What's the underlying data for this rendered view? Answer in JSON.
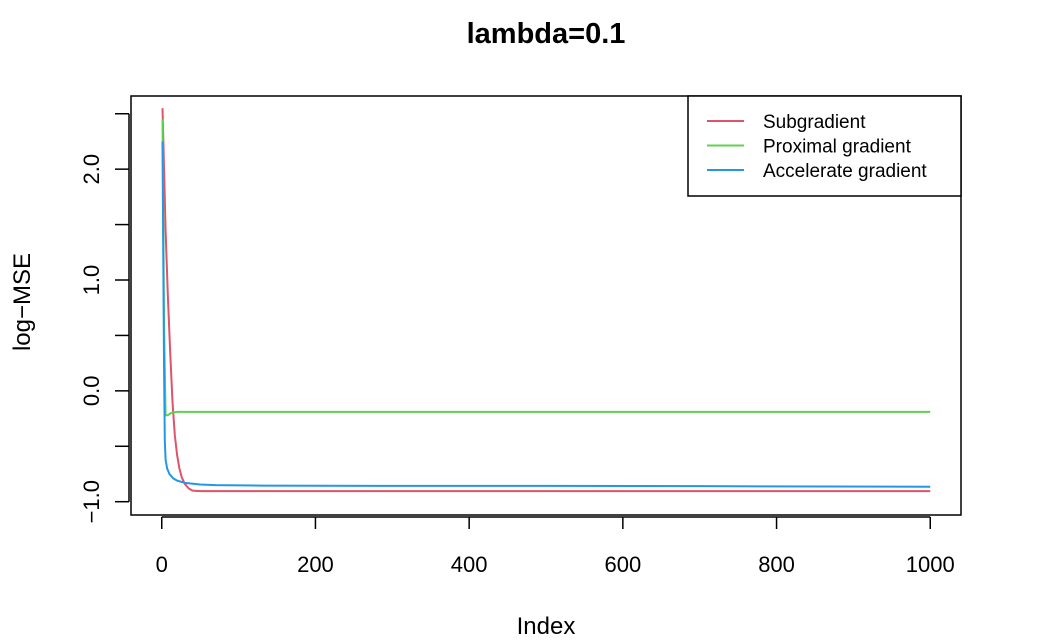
{
  "chart_data": {
    "type": "line",
    "title": "lambda=0.1",
    "xlabel": "Index",
    "ylabel": "log−MSE",
    "xlim": [
      -40,
      1040
    ],
    "ylim": [
      -1.12,
      2.66
    ],
    "x_ticks": [
      0,
      200,
      400,
      600,
      800,
      1000
    ],
    "x_tick_labels": [
      "0",
      "200",
      "400",
      "600",
      "800",
      "1000"
    ],
    "y_ticks": [
      -1.0,
      -0.5,
      0.0,
      0.5,
      1.0,
      1.5,
      2.0,
      2.5
    ],
    "y_tick_labels": [
      "−1.0",
      "",
      "0.0",
      "",
      "1.0",
      "",
      "2.0",
      ""
    ],
    "grid": false,
    "legend_position": "top-right",
    "series": [
      {
        "name": "Subgradient",
        "color": "#DF536B",
        "points": [
          [
            1,
            2.55
          ],
          [
            3,
            2.0
          ],
          [
            5,
            1.45
          ],
          [
            8,
            0.85
          ],
          [
            11,
            0.35
          ],
          [
            14,
            -0.1
          ],
          [
            17,
            -0.4
          ],
          [
            20,
            -0.58
          ],
          [
            23,
            -0.7
          ],
          [
            26,
            -0.78
          ],
          [
            30,
            -0.84
          ],
          [
            35,
            -0.88
          ],
          [
            40,
            -0.9
          ],
          [
            50,
            -0.905
          ],
          [
            1000,
            -0.905
          ]
        ]
      },
      {
        "name": "Proximal gradient",
        "color": "#61D04F",
        "points": [
          [
            1,
            2.45
          ],
          [
            3,
            0.6
          ],
          [
            5,
            -0.22
          ],
          [
            8,
            -0.22
          ],
          [
            12,
            -0.2
          ],
          [
            20,
            -0.19
          ],
          [
            30,
            -0.19
          ],
          [
            1000,
            -0.19
          ]
        ]
      },
      {
        "name": "Accelerate gradient",
        "color": "#2297E6",
        "points": [
          [
            1,
            2.25
          ],
          [
            2,
            1.2
          ],
          [
            3,
            0.2
          ],
          [
            4,
            -0.45
          ],
          [
            5,
            -0.62
          ],
          [
            7,
            -0.7
          ],
          [
            10,
            -0.75
          ],
          [
            15,
            -0.79
          ],
          [
            20,
            -0.81
          ],
          [
            30,
            -0.83
          ],
          [
            50,
            -0.845
          ],
          [
            70,
            -0.85
          ],
          [
            130,
            -0.855
          ],
          [
            300,
            -0.857
          ],
          [
            500,
            -0.857
          ],
          [
            700,
            -0.86
          ],
          [
            1000,
            -0.865
          ]
        ]
      }
    ]
  }
}
